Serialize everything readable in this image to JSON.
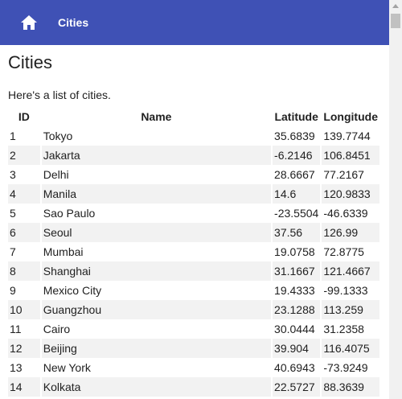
{
  "header": {
    "home_icon": "home-icon",
    "title": "Cities"
  },
  "page": {
    "title": "Cities",
    "intro": "Here's a list of cities."
  },
  "table": {
    "columns": [
      "ID",
      "Name",
      "Latitude",
      "Longitude"
    ],
    "rows": [
      [
        "1",
        "Tokyo",
        "35.6839",
        "139.7744"
      ],
      [
        "2",
        "Jakarta",
        "-6.2146",
        "106.8451"
      ],
      [
        "3",
        "Delhi",
        "28.6667",
        "77.2167"
      ],
      [
        "4",
        "Manila",
        "14.6",
        "120.9833"
      ],
      [
        "5",
        "Sao Paulo",
        "-23.5504",
        "-46.6339"
      ],
      [
        "6",
        "Seoul",
        "37.56",
        "126.99"
      ],
      [
        "7",
        "Mumbai",
        "19.0758",
        "72.8775"
      ],
      [
        "8",
        "Shanghai",
        "31.1667",
        "121.4667"
      ],
      [
        "9",
        "Mexico City",
        "19.4333",
        "-99.1333"
      ],
      [
        "10",
        "Guangzhou",
        "23.1288",
        "113.259"
      ],
      [
        "11",
        "Cairo",
        "30.0444",
        "31.2358"
      ],
      [
        "12",
        "Beijing",
        "39.904",
        "116.4075"
      ],
      [
        "13",
        "New York",
        "40.6943",
        "-73.9249"
      ],
      [
        "14",
        "Kolkata",
        "22.5727",
        "88.3639"
      ]
    ]
  },
  "colors": {
    "appbar": "#3f51b5",
    "stripe": "#f2f2f2"
  }
}
